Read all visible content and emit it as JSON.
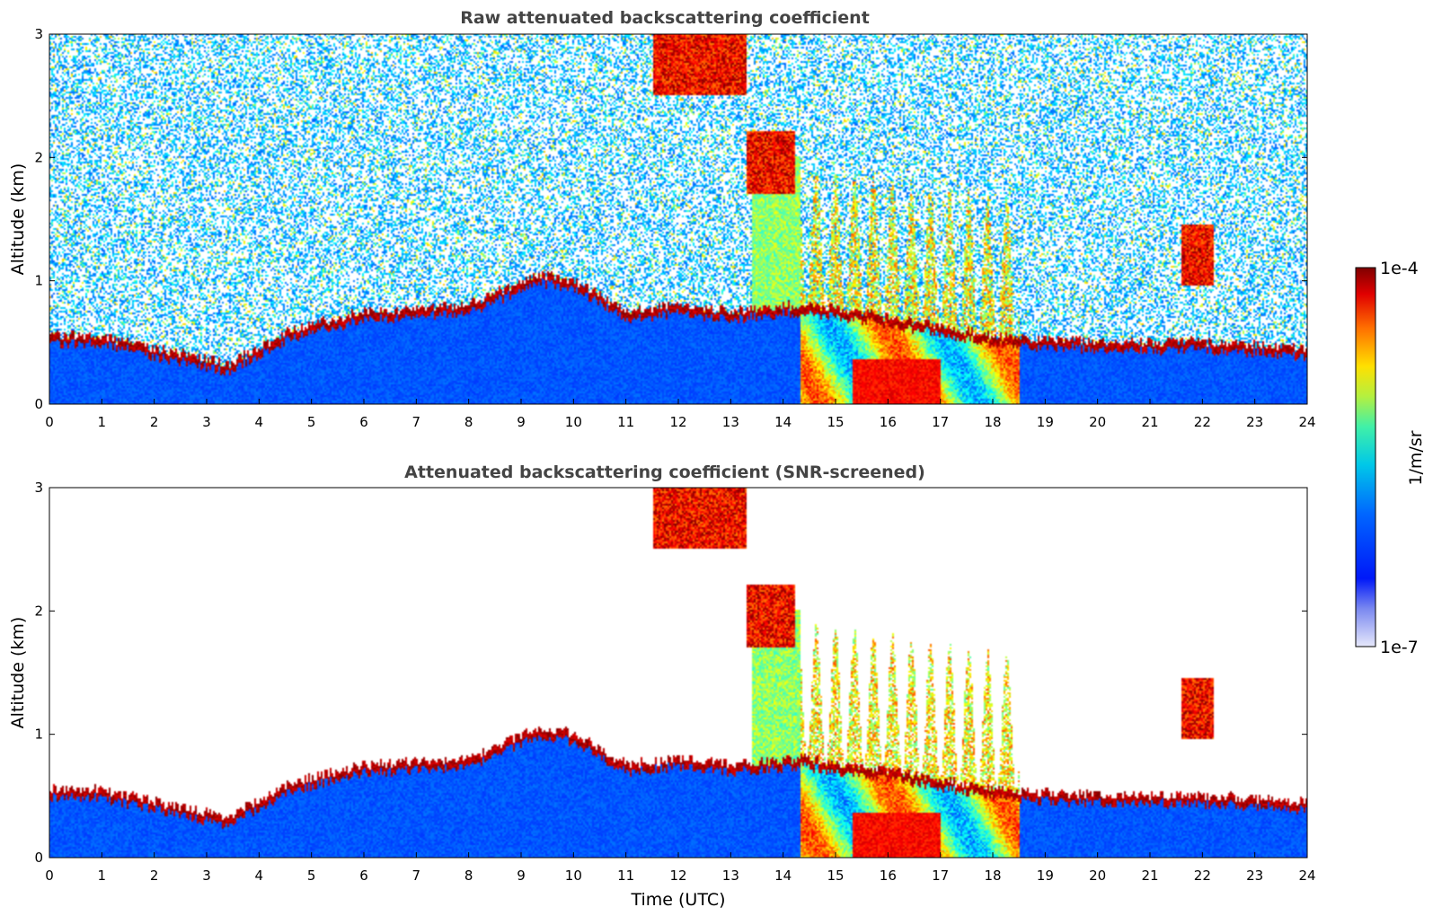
{
  "chart_data": [
    {
      "type": "heatmap",
      "title": "Raw attenuated backscattering coefficient",
      "xlabel": "",
      "ylabel": "Altitude (km)",
      "xlim": [
        0,
        24
      ],
      "ylim": [
        0,
        3
      ],
      "x_ticks": [
        "0",
        "1",
        "2",
        "3",
        "4",
        "5",
        "6",
        "7",
        "8",
        "9",
        "10",
        "11",
        "12",
        "13",
        "14",
        "15",
        "16",
        "17",
        "18",
        "19",
        "20",
        "21",
        "22",
        "23",
        "24"
      ],
      "y_ticks": [
        "0",
        "1",
        "2",
        "3"
      ],
      "screened": false
    },
    {
      "type": "heatmap",
      "title": "Attenuated backscattering coefficient (SNR-screened)",
      "xlabel": "Time (UTC)",
      "ylabel": "Altitude (km)",
      "xlim": [
        0,
        24
      ],
      "ylim": [
        0,
        3
      ],
      "x_ticks": [
        "0",
        "1",
        "2",
        "3",
        "4",
        "5",
        "6",
        "7",
        "8",
        "9",
        "10",
        "11",
        "12",
        "13",
        "14",
        "15",
        "16",
        "17",
        "18",
        "19",
        "20",
        "21",
        "22",
        "23",
        "24"
      ],
      "y_ticks": [
        "0",
        "1",
        "2",
        "3"
      ],
      "screened": true
    }
  ],
  "colorbar": {
    "label": "1/m/sr",
    "max_label": "1e-4",
    "min_label": "1e-7",
    "scale": "log",
    "colormap": "jet"
  },
  "profile_summary": {
    "boundary_layer_top_km": [
      [
        0.9,
        0.55
      ],
      [
        2,
        0.45
      ],
      [
        3.4,
        0.32
      ],
      [
        4.6,
        0.6
      ],
      [
        6,
        0.75
      ],
      [
        8,
        0.8
      ],
      [
        9.3,
        1.05
      ],
      [
        10,
        1.0
      ],
      [
        11,
        0.75
      ],
      [
        12,
        0.8
      ],
      [
        13,
        0.75
      ],
      [
        14.3,
        0.8
      ],
      [
        16,
        0.7
      ],
      [
        18,
        0.55
      ],
      [
        20,
        0.5
      ],
      [
        22,
        0.5
      ],
      [
        24,
        0.45
      ]
    ],
    "cloud_features": [
      {
        "t_start": 11.5,
        "t_end": 13.3,
        "alt_top_km": 3.0,
        "alt_bottom_km": 2.5
      },
      {
        "t_start": 13.3,
        "t_end": 14.2,
        "alt_top_km": 2.2,
        "alt_bottom_km": 1.7
      },
      {
        "t_start": 21.6,
        "t_end": 22.2,
        "alt_top_km": 1.45,
        "alt_bottom_km": 0.95
      }
    ]
  }
}
